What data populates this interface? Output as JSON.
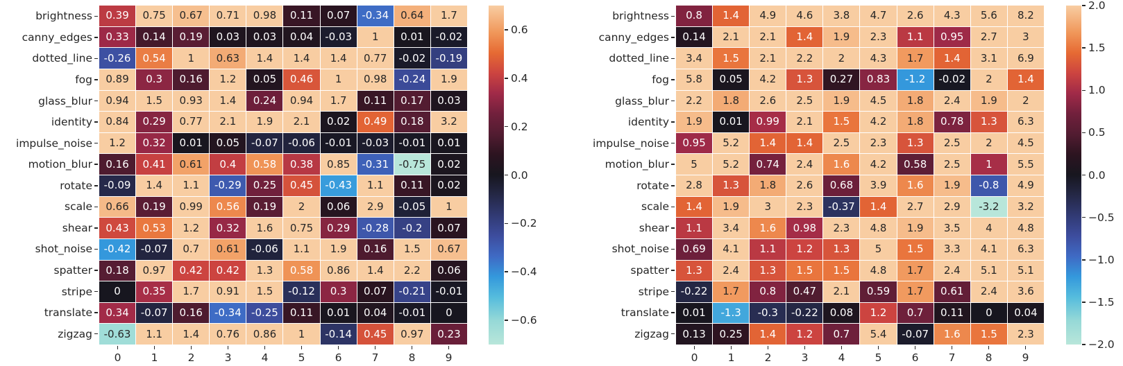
{
  "page": {
    "background": "#ffffff"
  },
  "palette": {
    "colormap_name": "icefire",
    "annotation_dark": "#262626",
    "annotation_light": "#ffffff",
    "luminance_threshold": 0.408,
    "tick_color": "#262626",
    "stops": [
      {
        "t": 0.0,
        "color": "#b8e6da"
      },
      {
        "t": 0.07,
        "color": "#96d9d7"
      },
      {
        "t": 0.14,
        "color": "#55bcdd"
      },
      {
        "t": 0.2,
        "color": "#3498dc"
      },
      {
        "t": 0.26,
        "color": "#3f6ac4"
      },
      {
        "t": 0.32,
        "color": "#3d4d9e"
      },
      {
        "t": 0.38,
        "color": "#313a74"
      },
      {
        "t": 0.44,
        "color": "#252847"
      },
      {
        "t": 0.5,
        "color": "#17161f"
      },
      {
        "t": 0.56,
        "color": "#2c1420"
      },
      {
        "t": 0.62,
        "color": "#521c31"
      },
      {
        "t": 0.68,
        "color": "#71203c"
      },
      {
        "t": 0.74,
        "color": "#a02a48"
      },
      {
        "t": 0.8,
        "color": "#cc4440"
      },
      {
        "t": 0.86,
        "color": "#e66a33"
      },
      {
        "t": 0.92,
        "color": "#f0975a"
      },
      {
        "t": 1.0,
        "color": "#f8cda2"
      }
    ]
  },
  "chart_data": [
    {
      "type": "heatmap",
      "title": "",
      "rows": [
        "brightness",
        "canny_edges",
        "dotted_line",
        "fog",
        "glass_blur",
        "identity",
        "impulse_noise",
        "motion_blur",
        "rotate",
        "scale",
        "shear",
        "shot_noise",
        "spatter",
        "stripe",
        "translate",
        "zigzag"
      ],
      "columns": [
        "0",
        "1",
        "2",
        "3",
        "4",
        "5",
        "6",
        "7",
        "8",
        "9"
      ],
      "values": [
        [
          0.39,
          0.75,
          0.67,
          0.71,
          0.98,
          0.11,
          0.07,
          -0.34,
          0.64,
          1.7
        ],
        [
          0.33,
          0.14,
          0.19,
          0.03,
          0.03,
          0.04,
          -0.03,
          1,
          0.01,
          -0.02
        ],
        [
          -0.26,
          0.54,
          1,
          0.63,
          1.4,
          1.4,
          1.4,
          0.77,
          -0.02,
          -0.19
        ],
        [
          0.89,
          0.3,
          0.16,
          1.2,
          0.05,
          0.46,
          1,
          0.98,
          -0.24,
          1.9
        ],
        [
          0.94,
          1.5,
          0.93,
          1.4,
          0.24,
          0.94,
          1.7,
          0.11,
          0.17,
          0.03
        ],
        [
          0.84,
          0.29,
          0.77,
          2.1,
          1.9,
          2.1,
          0.02,
          0.49,
          0.18,
          3.2
        ],
        [
          1.2,
          0.32,
          0.01,
          0.05,
          -0.07,
          -0.06,
          -0.01,
          -0.03,
          -0.01,
          0.01
        ],
        [
          0.16,
          0.41,
          0.61,
          0.4,
          0.58,
          0.38,
          0.85,
          -0.31,
          -0.75,
          0.02
        ],
        [
          -0.09,
          1.4,
          1.1,
          -0.29,
          0.25,
          0.45,
          -0.43,
          1.1,
          0.11,
          0.02
        ],
        [
          0.66,
          0.19,
          0.99,
          0.56,
          0.19,
          2,
          0.06,
          2.9,
          -0.05,
          1
        ],
        [
          0.43,
          0.53,
          1.2,
          0.32,
          1.6,
          0.75,
          0.29,
          -0.28,
          -0.2,
          0.07
        ],
        [
          -0.42,
          -0.07,
          0.7,
          0.61,
          -0.06,
          1.1,
          1.9,
          0.16,
          1.5,
          0.67
        ],
        [
          0.18,
          0.97,
          0.42,
          0.42,
          1.3,
          0.58,
          0.86,
          1.4,
          2.2,
          0.06
        ],
        [
          0,
          0.35,
          1.7,
          0.91,
          1.5,
          -0.12,
          0.3,
          0.07,
          -0.21,
          -0.01
        ],
        [
          0.34,
          -0.07,
          0.16,
          -0.34,
          -0.25,
          0.11,
          0.01,
          0.04,
          -0.01,
          0
        ],
        [
          -0.63,
          1.1,
          1.4,
          0.76,
          0.86,
          1,
          -0.14,
          0.45,
          0.97,
          0.23
        ]
      ],
      "vmin": -0.7,
      "vmax": 0.7,
      "colorbar": {
        "tick_values": [
          0.6,
          0.4,
          0.2,
          0.0,
          -0.2,
          -0.4,
          -0.6
        ],
        "tick_labels": [
          "0.6",
          "0.4",
          "0.2",
          "0.0",
          "−0.2",
          "−0.4",
          "−0.6"
        ]
      }
    },
    {
      "type": "heatmap",
      "title": "",
      "rows": [
        "brightness",
        "canny_edges",
        "dotted_line",
        "fog",
        "glass_blur",
        "identity",
        "impulse_noise",
        "motion_blur",
        "rotate",
        "scale",
        "shear",
        "shot_noise",
        "spatter",
        "stripe",
        "translate",
        "zigzag"
      ],
      "columns": [
        "0",
        "1",
        "2",
        "3",
        "4",
        "5",
        "6",
        "7",
        "8",
        "9"
      ],
      "values": [
        [
          0.8,
          1.4,
          4.9,
          4.6,
          3.8,
          4.7,
          2.6,
          4.3,
          5.6,
          8.2
        ],
        [
          0.14,
          2.1,
          2.1,
          1.4,
          1.9,
          2.3,
          1.1,
          0.95,
          2.7,
          3
        ],
        [
          3.4,
          1.5,
          2.1,
          2.2,
          2,
          4.3,
          1.7,
          1.4,
          3.1,
          6.9
        ],
        [
          5.8,
          0.05,
          4.2,
          1.3,
          0.27,
          0.83,
          -1.2,
          -0.02,
          2,
          1.4
        ],
        [
          2.2,
          1.8,
          2.6,
          2.5,
          1.9,
          4.5,
          1.8,
          2.4,
          1.9,
          2
        ],
        [
          1.9,
          0.01,
          0.99,
          2.1,
          1.5,
          4.2,
          1.8,
          0.78,
          1.3,
          6.3
        ],
        [
          0.95,
          5.2,
          1.4,
          1.4,
          2.5,
          2.3,
          1.3,
          2.5,
          2,
          4.5
        ],
        [
          5,
          5.2,
          0.74,
          2.4,
          1.6,
          4.2,
          0.58,
          2.5,
          1,
          5.5
        ],
        [
          2.8,
          1.3,
          1.8,
          2.6,
          0.68,
          3.9,
          1.6,
          1.9,
          -0.8,
          4.9
        ],
        [
          1.4,
          1.9,
          3,
          2.3,
          -0.37,
          1.4,
          2.7,
          2.9,
          -3.2,
          3.2
        ],
        [
          1.1,
          3.4,
          1.6,
          0.98,
          2.3,
          4.8,
          1.9,
          3.5,
          4,
          4.8
        ],
        [
          0.69,
          4.1,
          1.1,
          1.2,
          1.3,
          5,
          1.5,
          3.3,
          4.1,
          6.3
        ],
        [
          1.3,
          2.4,
          1.3,
          1.5,
          1.5,
          4.8,
          1.7,
          2.4,
          5.1,
          5.1
        ],
        [
          -0.22,
          1.7,
          0.8,
          0.47,
          2.1,
          0.59,
          1.7,
          0.61,
          2.4,
          3.6
        ],
        [
          0.01,
          -1.3,
          -0.3,
          -0.22,
          0.08,
          1.2,
          0.7,
          0.11,
          0,
          0.04
        ],
        [
          0.13,
          0.25,
          1.4,
          1.2,
          0.7,
          5.4,
          -0.07,
          1.6,
          1.5,
          2.3
        ]
      ],
      "vmin": -2.0,
      "vmax": 2.0,
      "colorbar": {
        "tick_values": [
          2.0,
          1.5,
          1.0,
          0.5,
          0.0,
          -0.5,
          -1.0,
          -1.5,
          -2.0
        ],
        "tick_labels": [
          "2.0",
          "1.5",
          "1.0",
          "0.5",
          "0.0",
          "−0.5",
          "−1.0",
          "−1.5",
          "−2.0"
        ]
      }
    }
  ]
}
